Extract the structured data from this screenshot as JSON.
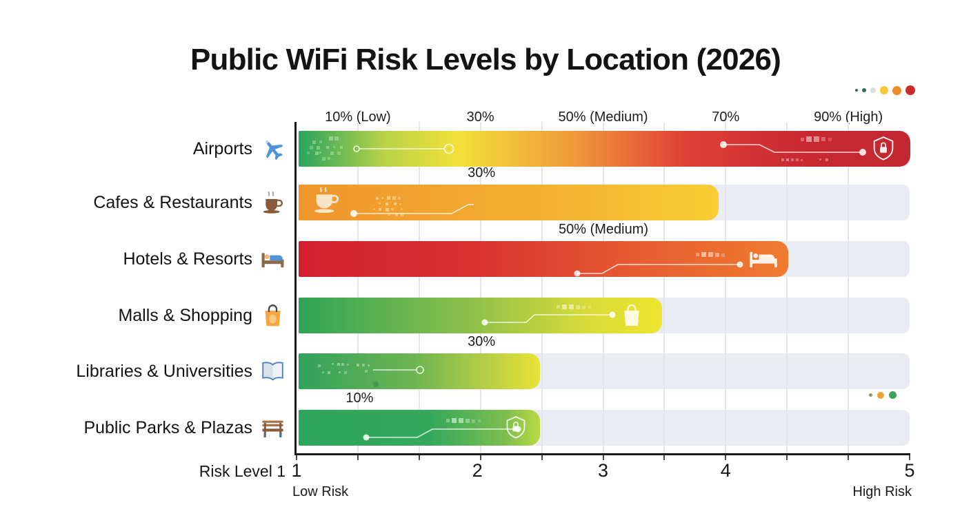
{
  "title": "Public WiFi Risk Levels by Location (2026)",
  "colors": {
    "track": "#e9edf1",
    "grid": "#e3e7ec",
    "axis": "#1b1b1b"
  },
  "top_axis": {
    "labels": [
      {
        "text": "10% (Low)",
        "pct": 10
      },
      {
        "text": "30%",
        "pct": 30
      },
      {
        "text": "50% (Medium)",
        "pct": 50
      },
      {
        "text": "70%",
        "pct": 70
      },
      {
        "text": "90% (High)",
        "pct": 90
      }
    ]
  },
  "bottom_axis": {
    "title": "Risk Level 1",
    "ticks": [
      {
        "label": "1",
        "pct": 0
      },
      {
        "label": "2",
        "pct": 29.5
      },
      {
        "label": "3",
        "pct": 50
      },
      {
        "label": "4",
        "pct": 70
      },
      {
        "label": "5",
        "pct": 100
      }
    ],
    "low_label": "Low Risk",
    "high_label": "High Risk"
  },
  "chart_data": {
    "type": "bar",
    "orientation": "horizontal",
    "title": "Public WiFi Risk Levels by Location (2026)",
    "x_axis": {
      "label": "Risk Level 1",
      "range": [
        1,
        5
      ],
      "low": "Low Risk",
      "high": "High Risk"
    },
    "top_scale_labels": [
      "10% (Low)",
      "30%",
      "50% (Medium)",
      "70%",
      "90% (High)"
    ],
    "grid": true,
    "rows": [
      {
        "label": "Airports",
        "icon": "airplane-icon",
        "value_pct": 100,
        "annotation": "",
        "gradient": [
          [
            "#28a35d",
            0
          ],
          [
            "#b9d348",
            14
          ],
          [
            "#f2e139",
            26
          ],
          [
            "#f0993a",
            45
          ],
          [
            "#e04136",
            63
          ],
          [
            "#c92931",
            82
          ],
          [
            "#c22731",
            100
          ]
        ],
        "inner_icon": "shield-lock-icon"
      },
      {
        "label": "Cafes & Restaurants",
        "icon": "coffee-cup-icon",
        "value_pct": 68.9,
        "annotation": "30%",
        "annotation_pct": 30,
        "gradient": [
          [
            "#f0962e",
            0
          ],
          [
            "#f3ae30",
            55
          ],
          [
            "#f8ce34",
            100
          ]
        ],
        "inner_icon": "coffee-cup-white-icon"
      },
      {
        "label": "Hotels & Resorts",
        "icon": "bed-icon",
        "value_pct": 80.3,
        "annotation": "50% (Medium)",
        "annotation_pct": 50,
        "gradient": [
          [
            "#d21f30",
            0
          ],
          [
            "#d93431",
            38
          ],
          [
            "#e65b31",
            68
          ],
          [
            "#ef7c30",
            100
          ]
        ],
        "inner_icon": "bed-white-icon"
      },
      {
        "label": "Malls & Shopping",
        "icon": "shopping-bag-icon",
        "value_pct": 59.6,
        "annotation": "",
        "gradient": [
          [
            "#2fa458",
            0
          ],
          [
            "#8fc04a",
            48
          ],
          [
            "#d6db3a",
            78
          ],
          [
            "#efe52f",
            100
          ]
        ],
        "inner_icon": "shopping-bag-white-icon"
      },
      {
        "label": "Libraries & Universities",
        "icon": "open-book-icon",
        "value_pct": 39.6,
        "annotation": "30%",
        "annotation_pct": 30,
        "gradient": [
          [
            "#31a25c",
            0
          ],
          [
            "#6eb552",
            48
          ],
          [
            "#b5cf45",
            78
          ],
          [
            "#e9e237",
            100
          ]
        ],
        "inner_icon": ""
      },
      {
        "label": "Public Parks & Plazas",
        "icon": "bench-icon",
        "value_pct": 39.6,
        "annotation": "10%",
        "annotation_pct": 10,
        "gradient": [
          [
            "#2da65b",
            0
          ],
          [
            "#36a85c",
            55
          ],
          [
            "#7ebf4e",
            86
          ],
          [
            "#bcda42",
            100
          ]
        ],
        "inner_icon": "shield-lock-icon"
      }
    ]
  },
  "decor": {
    "top_dots": [
      {
        "color": "#2f6e52",
        "r": 2
      },
      {
        "color": "#2f6e52",
        "r": 3
      },
      {
        "color": "#d9dbdd",
        "r": 4
      },
      {
        "color": "#f4c733",
        "r": 6
      },
      {
        "color": "#ef8a31",
        "r": 6.5
      },
      {
        "color": "#c92b2b",
        "r": 7
      }
    ],
    "mid_dots": [
      {
        "color": "#8e9169",
        "r": 2.5
      },
      {
        "color": "#efa233",
        "r": 5
      },
      {
        "color": "#3aa25a",
        "r": 5.5
      }
    ]
  }
}
